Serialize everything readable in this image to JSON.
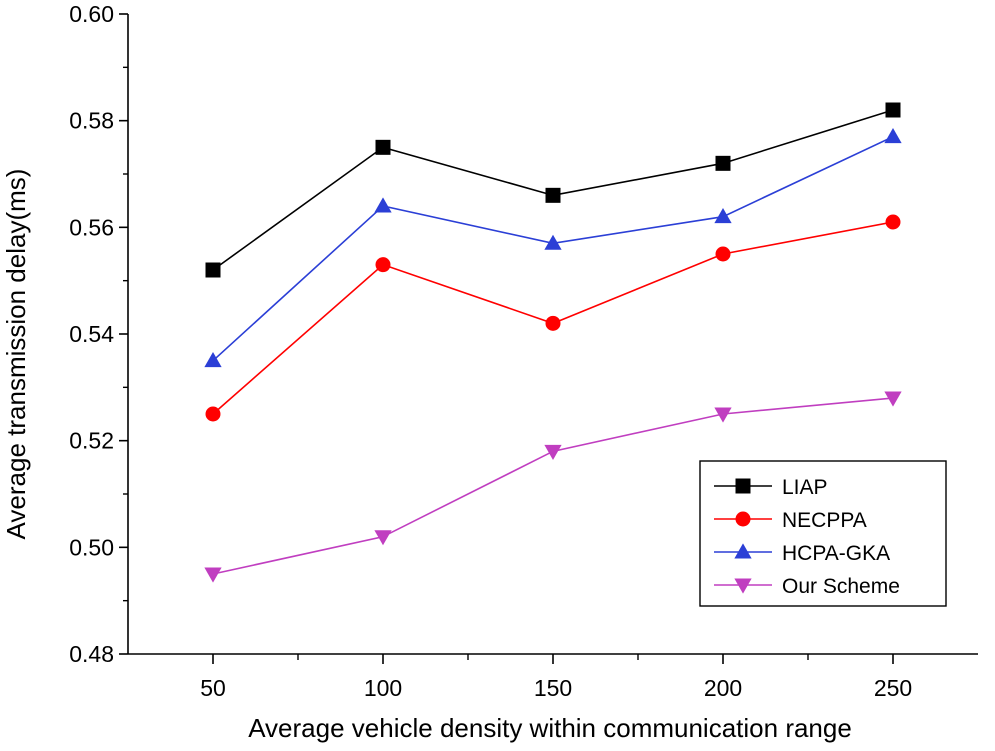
{
  "chart_data": {
    "type": "line",
    "title": "",
    "xlabel": "Average vehicle density within communication range",
    "ylabel": "Average transmission delay(ms)",
    "x": [
      50,
      100,
      150,
      200,
      250
    ],
    "xlim": [
      25,
      275
    ],
    "ylim": [
      0.48,
      0.6
    ],
    "xticks": [
      50,
      100,
      150,
      200,
      250
    ],
    "xtick_labels": [
      "50",
      "100",
      "150",
      "200",
      "250"
    ],
    "yticks": [
      0.48,
      0.5,
      0.52,
      0.54,
      0.56,
      0.58,
      0.6
    ],
    "ytick_labels": [
      "0.48",
      "0.50",
      "0.52",
      "0.54",
      "0.56",
      "0.58",
      "0.60"
    ],
    "grid": false,
    "legend_position": "bottom-right",
    "series": [
      {
        "name": "LIAP",
        "values": [
          0.552,
          0.575,
          0.566,
          0.572,
          0.582
        ],
        "color": "#000000",
        "marker": "square"
      },
      {
        "name": "NECPPA",
        "values": [
          0.525,
          0.553,
          0.542,
          0.555,
          0.561
        ],
        "color": "#ff0000",
        "marker": "circle"
      },
      {
        "name": "HCPA-GKA",
        "values": [
          0.535,
          0.564,
          0.557,
          0.562,
          0.577
        ],
        "color": "#2b3fd6",
        "marker": "triangle-up"
      },
      {
        "name": "Our Scheme",
        "values": [
          0.495,
          0.502,
          0.518,
          0.525,
          0.528
        ],
        "color": "#c03ec0",
        "marker": "triangle-down"
      }
    ]
  }
}
